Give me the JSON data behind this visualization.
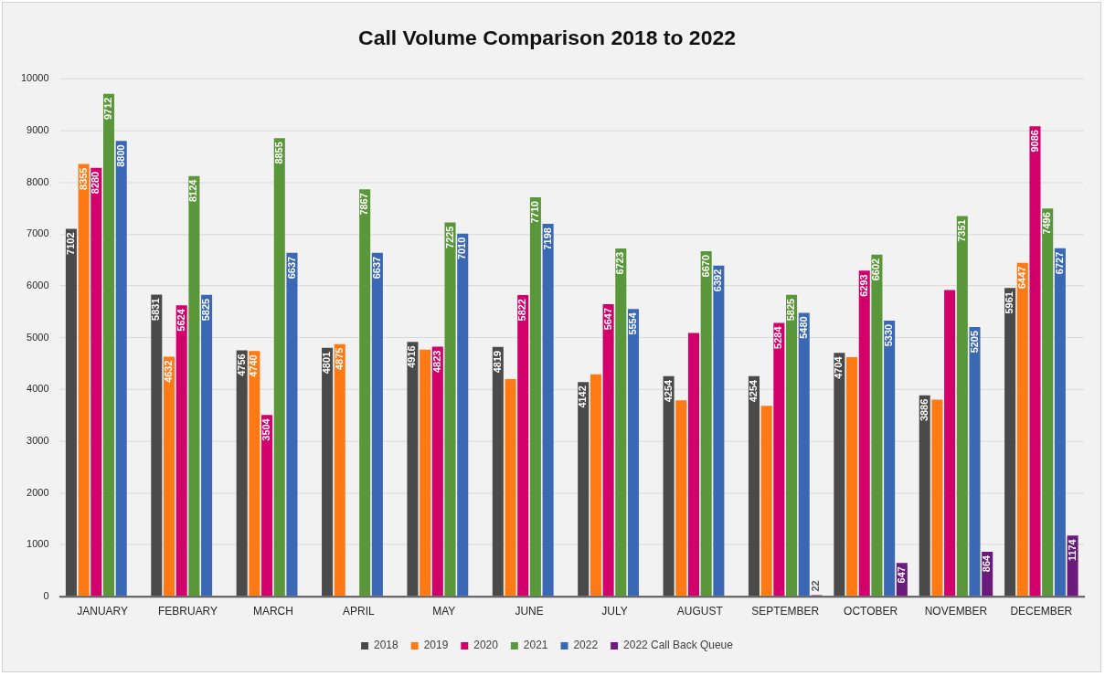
{
  "chart_data": {
    "type": "bar",
    "title": "Call Volume Comparison 2018 to 2022",
    "categories": [
      "JANUARY",
      "FEBRUARY",
      "MARCH",
      "APRIL",
      "MAY",
      "JUNE",
      "JULY",
      "AUGUST",
      "SEPTEMBER",
      "OCTOBER",
      "NOVEMBER",
      "DECEMBER"
    ],
    "series": [
      {
        "name": "2018",
        "color": "#4a4a4a",
        "values": [
          7102,
          5831,
          4756,
          4801,
          4916,
          4819,
          4142,
          4254,
          4254,
          4704,
          3886,
          5961
        ],
        "value_labels": [
          "7102",
          "5831",
          "4756",
          "4801",
          "4916",
          "4819",
          "4142",
          "4254",
          "4254",
          "4704",
          "3886",
          "5961"
        ]
      },
      {
        "name": "2019",
        "color": "#ff7a14",
        "values": [
          8355,
          4632,
          4740,
          4875,
          4770,
          4200,
          4290,
          3790,
          3680,
          4620,
          3800,
          6447
        ],
        "value_labels": [
          "8355",
          "4632",
          "4740",
          "4875",
          null,
          null,
          null,
          null,
          null,
          null,
          null,
          "6447"
        ]
      },
      {
        "name": "2020",
        "color": "#d2006a",
        "values": [
          8280,
          5624,
          3504,
          null,
          4823,
          5822,
          5647,
          5090,
          5284,
          6293,
          5920,
          9086
        ],
        "value_labels": [
          "8280",
          "5624",
          "3504",
          null,
          "4823",
          "5822",
          "5647",
          null,
          "5284",
          "6293",
          null,
          "9086"
        ]
      },
      {
        "name": "2021",
        "color": "#5a973a",
        "values": [
          9712,
          8124,
          8855,
          7867,
          7225,
          7710,
          6723,
          6670,
          5825,
          6602,
          7351,
          7496
        ],
        "value_labels": [
          "9712",
          "8124",
          "8855",
          "7867",
          "7225",
          "7710",
          "6723",
          "6670",
          "5825",
          "6602",
          "7351",
          "7496"
        ]
      },
      {
        "name": "2022",
        "color": "#3a68b4",
        "values": [
          8800,
          5825,
          6637,
          6637,
          7010,
          7198,
          5554,
          6392,
          5480,
          5330,
          5205,
          6727
        ],
        "value_labels": [
          "8800",
          "5825",
          "6637",
          "6637",
          "7010",
          "7198",
          "5554",
          "6392",
          "5480",
          "5330",
          "5205",
          "6727"
        ]
      },
      {
        "name": "2022 Call Back Queue",
        "color": "#6a1b7c",
        "values": [
          null,
          null,
          null,
          null,
          null,
          null,
          null,
          null,
          22,
          647,
          864,
          1174
        ],
        "value_labels": [
          null,
          null,
          null,
          null,
          null,
          null,
          null,
          null,
          "22",
          "647",
          "864",
          "1174"
        ]
      }
    ],
    "ylim": [
      0,
      10000
    ],
    "yticks": [
      0,
      1000,
      2000,
      3000,
      4000,
      5000,
      6000,
      7000,
      8000,
      9000,
      10000
    ],
    "grid": "y",
    "legend": "bottom"
  }
}
